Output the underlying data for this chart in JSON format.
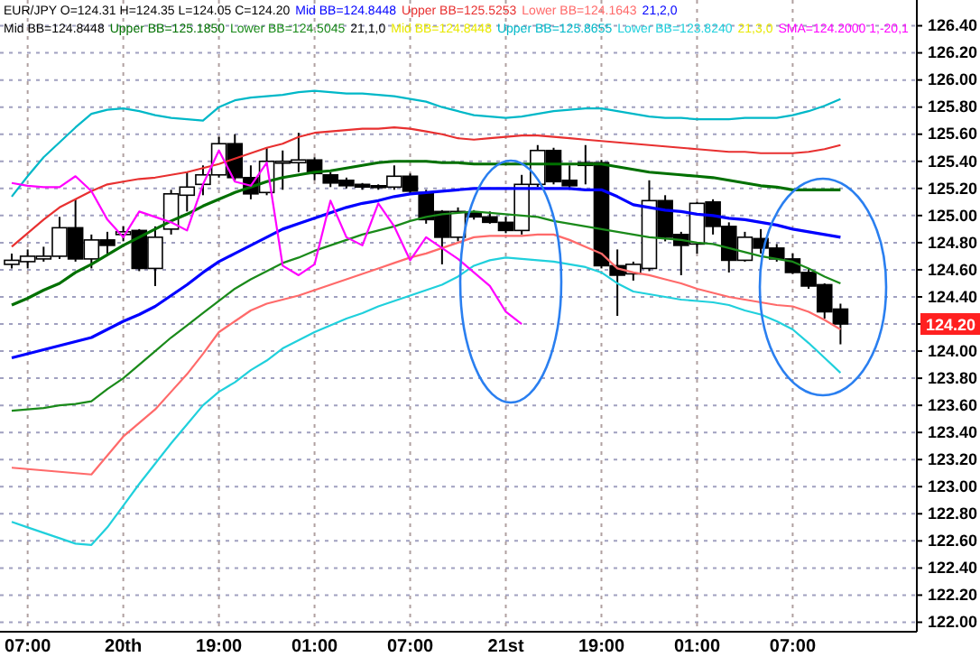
{
  "chart_data": {
    "type": "candlestick",
    "title": "EUR/JPY O=124.31 H=124.35 L=124.05 C=124.20",
    "categories": [
      null,
      "07:00",
      null,
      null,
      null,
      null,
      null,
      "20th",
      null,
      null,
      null,
      null,
      null,
      "19:00",
      null,
      null,
      null,
      null,
      null,
      "01:00",
      null,
      null,
      null,
      null,
      null,
      "07:00",
      null,
      null,
      null,
      null,
      null,
      "21st",
      null,
      null,
      null,
      null,
      null,
      "19:00",
      null,
      null,
      null,
      null,
      null,
      "01:00",
      null,
      null,
      null,
      null,
      null,
      "07:00",
      null,
      null,
      null
    ],
    "ohlc": [
      [
        124.64,
        124.72,
        124.61,
        124.67
      ],
      [
        124.66,
        124.75,
        124.61,
        124.7
      ],
      [
        124.68,
        124.77,
        124.66,
        124.7
      ],
      [
        124.7,
        124.99,
        124.68,
        124.91
      ],
      [
        124.91,
        125.12,
        124.66,
        124.68
      ],
      [
        124.68,
        124.86,
        124.61,
        124.82
      ],
      [
        124.82,
        124.88,
        124.72,
        124.78
      ],
      [
        124.86,
        124.92,
        124.81,
        124.88
      ],
      [
        124.89,
        124.9,
        124.59,
        124.61
      ],
      [
        124.61,
        124.92,
        124.48,
        124.84
      ],
      [
        124.9,
        125.19,
        124.86,
        125.16
      ],
      [
        125.15,
        125.32,
        125.03,
        125.21
      ],
      [
        125.23,
        125.37,
        125.15,
        125.3
      ],
      [
        125.3,
        125.58,
        125.28,
        125.53
      ],
      [
        125.53,
        125.6,
        125.26,
        125.28
      ],
      [
        125.28,
        125.37,
        125.12,
        125.16
      ],
      [
        125.17,
        125.5,
        125.15,
        125.4
      ],
      [
        125.39,
        125.48,
        125.19,
        125.4
      ],
      [
        125.39,
        125.61,
        125.32,
        125.41
      ],
      [
        125.41,
        125.43,
        125.26,
        125.31
      ],
      [
        125.3,
        125.32,
        125.21,
        125.24
      ],
      [
        125.26,
        125.28,
        125.2,
        125.22
      ],
      [
        125.23,
        125.24,
        125.19,
        125.21
      ],
      [
        125.22,
        125.23,
        125.19,
        125.21
      ],
      [
        125.21,
        125.37,
        125.19,
        125.29
      ],
      [
        125.29,
        125.31,
        125.16,
        125.18
      ],
      [
        125.17,
        125.19,
        124.94,
        124.97
      ],
      [
        125.03,
        125.04,
        124.64,
        124.84
      ],
      [
        124.84,
        125.06,
        124.81,
        125.03
      ],
      [
        125.02,
        125.04,
        124.97,
        124.99
      ],
      [
        124.99,
        125.03,
        124.94,
        124.95
      ],
      [
        124.95,
        124.99,
        124.87,
        124.89
      ],
      [
        124.89,
        125.3,
        124.86,
        125.23
      ],
      [
        125.23,
        125.52,
        125.21,
        125.48
      ],
      [
        125.48,
        125.5,
        125.23,
        125.25
      ],
      [
        125.26,
        125.37,
        125.19,
        125.22
      ],
      [
        125.37,
        125.52,
        125.23,
        125.39
      ],
      [
        125.39,
        125.41,
        124.61,
        124.63
      ],
      [
        124.63,
        124.75,
        124.26,
        124.56
      ],
      [
        124.57,
        124.66,
        124.52,
        124.64
      ],
      [
        124.61,
        125.26,
        124.59,
        125.11
      ],
      [
        125.11,
        125.15,
        124.81,
        124.84
      ],
      [
        124.86,
        124.88,
        124.56,
        124.78
      ],
      [
        124.79,
        125.1,
        124.72,
        125.09
      ],
      [
        125.1,
        125.12,
        124.86,
        124.92
      ],
      [
        124.92,
        124.95,
        124.58,
        124.67
      ],
      [
        124.67,
        124.88,
        124.66,
        124.84
      ],
      [
        124.83,
        124.9,
        124.72,
        124.76
      ],
      [
        124.76,
        124.79,
        124.66,
        124.68
      ],
      [
        124.68,
        124.72,
        124.57,
        124.58
      ],
      [
        124.58,
        124.61,
        124.46,
        124.48
      ],
      [
        124.49,
        124.5,
        124.24,
        124.29
      ],
      [
        124.31,
        124.35,
        124.05,
        124.2
      ]
    ],
    "series": [
      {
        "type": "line",
        "name": "Mid BB=124.8448",
        "color": "#0000ff",
        "values": [
          123.95,
          123.98,
          124.01,
          124.04,
          124.07,
          124.1,
          124.16,
          124.22,
          124.27,
          124.33,
          124.41,
          124.49,
          124.58,
          124.66,
          124.72,
          124.78,
          124.84,
          124.9,
          124.94,
          124.98,
          125.02,
          125.06,
          125.09,
          125.11,
          125.14,
          125.16,
          125.17,
          125.18,
          125.19,
          125.2,
          125.2,
          125.2,
          125.2,
          125.2,
          125.2,
          125.2,
          125.19,
          125.19,
          125.14,
          125.08,
          125.06,
          125.04,
          125.03,
          125.01,
          125.0,
          124.98,
          124.97,
          124.95,
          124.93,
          124.9,
          124.88,
          124.86,
          124.84
        ]
      },
      {
        "type": "line",
        "name": "Upper BB=125.5253",
        "color": "#e83030",
        "values": [
          124.77,
          124.87,
          124.97,
          125.06,
          125.12,
          125.18,
          125.23,
          125.25,
          125.27,
          125.28,
          125.3,
          125.32,
          125.35,
          125.38,
          125.42,
          125.46,
          125.5,
          125.53,
          125.58,
          125.61,
          125.62,
          125.63,
          125.64,
          125.64,
          125.65,
          125.64,
          125.62,
          125.6,
          125.57,
          125.56,
          125.57,
          125.58,
          125.59,
          125.59,
          125.58,
          125.57,
          125.56,
          125.55,
          125.54,
          125.53,
          125.52,
          125.51,
          125.5,
          125.49,
          125.48,
          125.47,
          125.47,
          125.46,
          125.46,
          125.46,
          125.47,
          125.49,
          125.52
        ]
      },
      {
        "type": "line",
        "name": "Lower BB=124.1643",
        "color": "#ff6a6a",
        "values": [
          123.14,
          123.13,
          123.12,
          123.11,
          123.1,
          123.09,
          123.23,
          123.37,
          123.47,
          123.57,
          123.7,
          123.83,
          123.98,
          124.14,
          124.22,
          124.3,
          124.35,
          124.38,
          124.41,
          124.45,
          124.49,
          124.53,
          124.57,
          124.61,
          124.65,
          124.69,
          124.72,
          124.76,
          124.8,
          124.84,
          124.85,
          124.85,
          124.85,
          124.86,
          124.86,
          124.82,
          124.77,
          124.72,
          124.61,
          124.58,
          124.56,
          124.53,
          124.5,
          124.46,
          124.43,
          124.4,
          124.38,
          124.36,
          124.34,
          124.33,
          124.29,
          124.23,
          124.16
        ]
      },
      {
        "type": "line",
        "name": "Upper BB=125.1850",
        "color": "#007000",
        "values": [
          124.34,
          124.39,
          124.45,
          124.5,
          124.58,
          124.64,
          124.71,
          124.78,
          124.84,
          124.9,
          124.96,
          125.01,
          125.07,
          125.12,
          125.17,
          125.21,
          125.25,
          125.28,
          125.3,
          125.32,
          125.33,
          125.35,
          125.37,
          125.39,
          125.4,
          125.4,
          125.4,
          125.39,
          125.39,
          125.38,
          125.38,
          125.38,
          125.38,
          125.38,
          125.38,
          125.38,
          125.38,
          125.38,
          125.36,
          125.34,
          125.32,
          125.31,
          125.3,
          125.29,
          125.28,
          125.26,
          125.24,
          125.22,
          125.21,
          125.19,
          125.19,
          125.19,
          125.19
        ]
      },
      {
        "type": "line",
        "name": "Lower BB=124.5045",
        "color": "#1a8a1a",
        "values": [
          123.56,
          123.57,
          123.58,
          123.6,
          123.61,
          123.63,
          123.72,
          123.8,
          123.9,
          124.0,
          124.1,
          124.19,
          124.28,
          124.37,
          124.46,
          124.53,
          124.59,
          124.65,
          124.69,
          124.74,
          124.78,
          124.82,
          124.86,
          124.89,
          124.92,
          124.96,
          124.99,
          125.01,
          125.02,
          125.03,
          125.02,
          125.01,
          125.0,
          124.99,
          124.96,
          124.94,
          124.92,
          124.9,
          124.88,
          124.86,
          124.84,
          124.83,
          124.82,
          124.8,
          124.79,
          124.76,
          124.73,
          124.7,
          124.68,
          124.66,
          124.61,
          124.55,
          124.5
        ]
      },
      {
        "type": "line",
        "name": "Upper BB=125.8655",
        "color": "#00b8c8",
        "values": [
          125.14,
          125.29,
          125.43,
          125.54,
          125.65,
          125.75,
          125.78,
          125.79,
          125.77,
          125.74,
          125.72,
          125.71,
          125.7,
          125.8,
          125.85,
          125.87,
          125.88,
          125.89,
          125.91,
          125.92,
          125.91,
          125.9,
          125.9,
          125.89,
          125.88,
          125.86,
          125.84,
          125.8,
          125.77,
          125.74,
          125.73,
          125.72,
          125.73,
          125.75,
          125.77,
          125.78,
          125.79,
          125.79,
          125.77,
          125.75,
          125.73,
          125.72,
          125.72,
          125.71,
          125.71,
          125.71,
          125.72,
          125.72,
          125.72,
          125.74,
          125.77,
          125.81,
          125.86
        ]
      },
      {
        "type": "line",
        "name": "Lower BB=123.8240",
        "color": "#20d0dc",
        "values": [
          122.74,
          122.7,
          122.66,
          122.62,
          122.58,
          122.57,
          122.7,
          122.86,
          123.02,
          123.17,
          123.32,
          123.46,
          123.6,
          123.7,
          123.77,
          123.86,
          123.93,
          124.02,
          124.08,
          124.14,
          124.19,
          124.24,
          124.28,
          124.33,
          124.37,
          124.41,
          124.45,
          124.49,
          124.55,
          124.63,
          124.67,
          124.69,
          124.68,
          124.67,
          124.66,
          124.64,
          124.62,
          124.58,
          124.5,
          124.44,
          124.42,
          124.4,
          124.38,
          124.37,
          124.36,
          124.34,
          124.3,
          124.27,
          124.22,
          124.16,
          124.06,
          123.95,
          123.84
        ]
      },
      {
        "type": "line",
        "name": "SMA=124.2000 1,-20,1",
        "color": "#ff00ff",
        "values": [
          125.24,
          125.22,
          125.21,
          125.21,
          125.29,
          125.18,
          124.97,
          124.84,
          125.03,
          124.99,
          124.95,
          124.89,
          125.23,
          125.48,
          125.25,
          125.22,
          125.39,
          124.63,
          124.56,
          124.64,
          125.11,
          124.84,
          124.78,
          125.09,
          124.92,
          124.67,
          124.84,
          124.76,
          124.68,
          124.58,
          124.48,
          124.29,
          124.2,
          null,
          null,
          null,
          null,
          null,
          null,
          null,
          null,
          null,
          null,
          null,
          null,
          null,
          null,
          null,
          null,
          null,
          null,
          null,
          null
        ]
      }
    ],
    "annotations": [
      "21,2,0",
      "Mid BB=124.8448",
      "21,1,0",
      "Mid BB=124.8448",
      "21,3,0",
      "124.20"
    ],
    "ylim": [
      121.93,
      126.59
    ],
    "yticks": [
      {
        "value": 122.0,
        "label": "122.00"
      },
      {
        "value": 122.2,
        "label": "122.20"
      },
      {
        "value": 122.4,
        "label": "122.40"
      },
      {
        "value": 122.6,
        "label": "122.60"
      },
      {
        "value": 122.8,
        "label": "122.80"
      },
      {
        "value": 123.0,
        "label": "123.00"
      },
      {
        "value": 123.2,
        "label": "123.20"
      },
      {
        "value": 123.4,
        "label": "123.40"
      },
      {
        "value": 123.6,
        "label": "123.60"
      },
      {
        "value": 123.8,
        "label": "123.80"
      },
      {
        "value": 124.0,
        "label": "124.00"
      },
      {
        "value": 124.2,
        "label": null
      },
      {
        "value": 124.4,
        "label": "124.40"
      },
      {
        "value": 124.6,
        "label": "124.60"
      },
      {
        "value": 124.8,
        "label": "124.80"
      },
      {
        "value": 125.0,
        "label": "125.00"
      },
      {
        "value": 125.2,
        "label": "125.20"
      },
      {
        "value": 125.4,
        "label": "125.40"
      },
      {
        "value": 125.6,
        "label": "125.60"
      },
      {
        "value": 125.8,
        "label": "125.80"
      },
      {
        "value": 126.0,
        "label": "126.00"
      },
      {
        "value": 126.2,
        "label": "126.20"
      },
      {
        "value": 126.4,
        "label": "126.40"
      }
    ],
    "grid": true,
    "legend": "top",
    "line_style": "solid",
    "marker": "none"
  }
}
